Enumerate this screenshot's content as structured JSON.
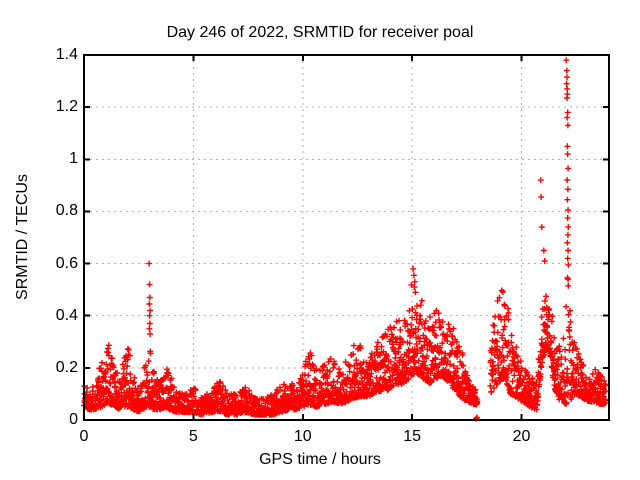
{
  "chart_data": {
    "type": "scatter",
    "title": "Day 246 of 2022, SRMTID for receiver poal",
    "xlabel": "GPS time / hours",
    "ylabel": "SRMTID / TECUs",
    "marker": "plus",
    "marker_color": "#ff0000",
    "grid_color": "#b0b0b0",
    "border_color": "#000000",
    "background_color": "#ffffff",
    "grid": true,
    "legend": "none",
    "xlim": [
      0,
      24
    ],
    "ylim": [
      0,
      1.4
    ],
    "xticks": [
      0,
      5,
      10,
      15,
      20
    ],
    "xtick_labels": [
      "0",
      "5",
      "10",
      "15",
      "20"
    ],
    "yticks": [
      0,
      0.2,
      0.4,
      0.6,
      0.8,
      1.0,
      1.2,
      1.4
    ],
    "ytick_labels": [
      "0",
      "0.2",
      "0.4",
      "0.6",
      "0.8",
      "1",
      "1.2",
      "1.4"
    ],
    "sampling_interval_hours": 0.008333,
    "t_start": 0.0,
    "t_end": 23.85,
    "gaps": [
      [
        17.99,
        18.57
      ]
    ],
    "seed": 1337,
    "envelope_note": "Each entry is [hour, min_SRMTID, max_SRMTID] of the dense point band read from the plot",
    "envelope": [
      [
        0.0,
        0.05,
        0.17
      ],
      [
        0.2,
        0.04,
        0.12
      ],
      [
        0.5,
        0.04,
        0.14
      ],
      [
        0.8,
        0.05,
        0.24
      ],
      [
        1.0,
        0.06,
        0.3
      ],
      [
        1.2,
        0.06,
        0.35
      ],
      [
        1.45,
        0.05,
        0.2
      ],
      [
        1.65,
        0.04,
        0.15
      ],
      [
        1.85,
        0.05,
        0.26
      ],
      [
        2.05,
        0.05,
        0.28
      ],
      [
        2.25,
        0.04,
        0.18
      ],
      [
        2.45,
        0.03,
        0.12
      ],
      [
        2.65,
        0.04,
        0.16
      ],
      [
        2.85,
        0.05,
        0.24
      ],
      [
        3.0,
        0.05,
        0.3
      ],
      [
        3.2,
        0.04,
        0.2
      ],
      [
        3.45,
        0.04,
        0.14
      ],
      [
        3.7,
        0.05,
        0.22
      ],
      [
        3.9,
        0.04,
        0.18
      ],
      [
        4.2,
        0.03,
        0.12
      ],
      [
        4.6,
        0.03,
        0.1
      ],
      [
        5.0,
        0.03,
        0.13
      ],
      [
        5.4,
        0.02,
        0.09
      ],
      [
        5.8,
        0.03,
        0.12
      ],
      [
        6.2,
        0.03,
        0.15
      ],
      [
        6.6,
        0.02,
        0.1
      ],
      [
        7.0,
        0.02,
        0.11
      ],
      [
        7.4,
        0.03,
        0.13
      ],
      [
        7.8,
        0.02,
        0.09
      ],
      [
        8.2,
        0.02,
        0.08
      ],
      [
        8.6,
        0.02,
        0.1
      ],
      [
        9.0,
        0.03,
        0.13
      ],
      [
        9.4,
        0.04,
        0.15
      ],
      [
        9.7,
        0.04,
        0.12
      ],
      [
        10.0,
        0.05,
        0.18
      ],
      [
        10.3,
        0.06,
        0.28
      ],
      [
        10.6,
        0.05,
        0.2
      ],
      [
        11.0,
        0.06,
        0.22
      ],
      [
        11.4,
        0.07,
        0.25
      ],
      [
        11.8,
        0.06,
        0.2
      ],
      [
        12.2,
        0.08,
        0.28
      ],
      [
        12.6,
        0.09,
        0.3
      ],
      [
        13.0,
        0.09,
        0.24
      ],
      [
        13.4,
        0.11,
        0.3
      ],
      [
        13.8,
        0.11,
        0.34
      ],
      [
        14.2,
        0.13,
        0.38
      ],
      [
        14.6,
        0.14,
        0.42
      ],
      [
        15.0,
        0.17,
        0.55
      ],
      [
        15.2,
        0.18,
        0.5
      ],
      [
        15.5,
        0.16,
        0.45
      ],
      [
        15.8,
        0.14,
        0.4
      ],
      [
        16.1,
        0.16,
        0.44
      ],
      [
        16.4,
        0.17,
        0.42
      ],
      [
        16.7,
        0.14,
        0.38
      ],
      [
        17.0,
        0.11,
        0.34
      ],
      [
        17.3,
        0.08,
        0.26
      ],
      [
        17.6,
        0.07,
        0.16
      ],
      [
        17.98,
        0.05,
        0.11
      ],
      [
        18.58,
        0.1,
        0.32
      ],
      [
        18.9,
        0.14,
        0.46
      ],
      [
        19.1,
        0.16,
        0.52
      ],
      [
        19.3,
        0.14,
        0.48
      ],
      [
        19.5,
        0.1,
        0.38
      ],
      [
        19.7,
        0.09,
        0.3
      ],
      [
        19.9,
        0.08,
        0.24
      ],
      [
        20.1,
        0.07,
        0.2
      ],
      [
        20.4,
        0.05,
        0.17
      ],
      [
        20.7,
        0.04,
        0.15
      ],
      [
        20.9,
        0.2,
        0.45
      ],
      [
        21.1,
        0.28,
        0.52
      ],
      [
        21.3,
        0.26,
        0.48
      ],
      [
        21.5,
        0.12,
        0.35
      ],
      [
        21.7,
        0.08,
        0.28
      ],
      [
        21.9,
        0.07,
        0.3
      ],
      [
        22.0,
        0.06,
        0.45
      ],
      [
        22.1,
        0.05,
        0.58
      ],
      [
        22.2,
        0.07,
        0.5
      ],
      [
        22.35,
        0.09,
        0.35
      ],
      [
        22.5,
        0.1,
        0.28
      ],
      [
        22.7,
        0.09,
        0.24
      ],
      [
        22.9,
        0.08,
        0.2
      ],
      [
        23.1,
        0.07,
        0.17
      ],
      [
        23.3,
        0.07,
        0.19
      ],
      [
        23.55,
        0.06,
        0.2
      ],
      [
        23.85,
        0.06,
        0.14
      ]
    ],
    "outliers_note": "Isolated high/low points [hour, SRMTID] visible outside the dense band",
    "outliers": [
      [
        2.98,
        0.6
      ],
      [
        3.0,
        0.52
      ],
      [
        3.01,
        0.47
      ],
      [
        2.99,
        0.445
      ],
      [
        3.02,
        0.42
      ],
      [
        3.0,
        0.4
      ],
      [
        3.01,
        0.37
      ],
      [
        2.99,
        0.35
      ],
      [
        3.02,
        0.33
      ],
      [
        15.05,
        0.58
      ],
      [
        15.08,
        0.555
      ],
      [
        15.12,
        0.53
      ],
      [
        15.1,
        0.51
      ],
      [
        15.15,
        0.49
      ],
      [
        17.93,
        0.005
      ],
      [
        17.97,
        0.01
      ],
      [
        20.88,
        0.92
      ],
      [
        20.9,
        0.855
      ],
      [
        20.93,
        0.74
      ],
      [
        21.02,
        0.65
      ],
      [
        21.06,
        0.61
      ],
      [
        22.05,
        1.38
      ],
      [
        22.07,
        1.34
      ],
      [
        22.08,
        1.315
      ],
      [
        22.06,
        1.29
      ],
      [
        22.09,
        1.27
      ],
      [
        22.1,
        1.25
      ],
      [
        22.08,
        1.235
      ],
      [
        22.11,
        1.18
      ],
      [
        22.09,
        1.16
      ],
      [
        22.12,
        1.13
      ],
      [
        22.1,
        1.05
      ],
      [
        22.11,
        1.02
      ],
      [
        22.13,
        0.965
      ],
      [
        22.09,
        0.92
      ],
      [
        22.12,
        0.885
      ],
      [
        22.1,
        0.845
      ],
      [
        22.13,
        0.805
      ],
      [
        22.11,
        0.775
      ],
      [
        22.14,
        0.74
      ],
      [
        22.12,
        0.71
      ],
      [
        22.1,
        0.68
      ],
      [
        22.13,
        0.65
      ],
      [
        22.11,
        0.62
      ],
      [
        22.14,
        0.595
      ]
    ]
  }
}
